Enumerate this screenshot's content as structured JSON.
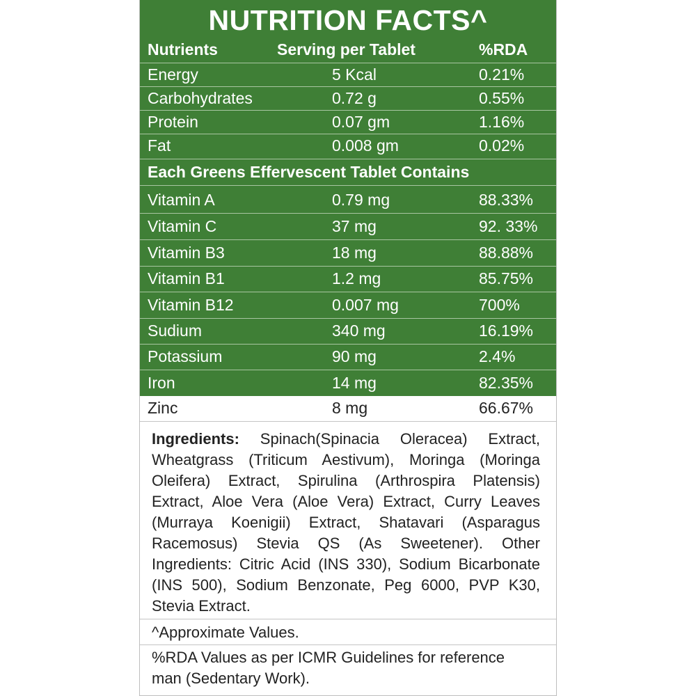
{
  "title": "NUTRITION FACTS^",
  "headers": {
    "col1": "Nutrients",
    "col2": "Serving per Tablet",
    "col3": "%RDA"
  },
  "basic_rows": [
    {
      "name": "Energy",
      "amount": "5 Kcal",
      "rda": "0.21%"
    },
    {
      "name": "Carbohydrates",
      "amount": "0.72 g",
      "rda": "0.55%"
    },
    {
      "name": "Protein",
      "amount": "0.07 gm",
      "rda": "1.16%"
    },
    {
      "name": "Fat",
      "amount": "0.008 gm",
      "rda": "0.02%"
    }
  ],
  "section_heading": "Each Greens Effervescent Tablet Contains",
  "vitamin_rows": [
    {
      "name": "Vitamin A",
      "amount": "0.79 mg",
      "rda": "88.33%"
    },
    {
      "name": "Vitamin C",
      "amount": "37 mg",
      "rda": "92. 33%"
    },
    {
      "name": "Vitamin B3",
      "amount": "18 mg",
      "rda": "88.88%"
    },
    {
      "name": "Vitamin B1",
      "amount": "1.2 mg",
      "rda": "85.75%"
    },
    {
      "name": "Vitamin B12",
      "amount": "0.007 mg",
      "rda": "700%"
    },
    {
      "name": "Sudium",
      "amount": "340 mg",
      "rda": "16.19%"
    },
    {
      "name": "Potassium",
      "amount": "90 mg",
      "rda": "2.4%"
    },
    {
      "name": "Iron",
      "amount": "14 mg",
      "rda": "82.35%"
    },
    {
      "name": "Zinc",
      "amount": "8 mg",
      "rda": "66.67%"
    }
  ],
  "ingredients": {
    "label": "Ingredients:",
    "text": " Spinach(Spinacia Oleracea) Extract, Wheatgrass (Triticum Aestivum), Moringa (Moringa Oleifera) Extract, Spirulina (Arthrospira Platensis) Extract, Aloe Vera (Aloe Vera) Extract, Curry Leaves (Murraya Koenigii) Extract, Shatavari (Asparagus Racemosus) Stevia QS (As Sweetener). Other Ingredients: Citric Acid (INS 330), Sodium Bicarbonate (INS 500), Sodium Benzonate, Peg 6000, PVP K30, Stevia Extract."
  },
  "approx_note": "^Approximate Values.",
  "rda_note": "%RDA Values as per ICMR Guidelines for reference man (Sedentary Work).",
  "colors": {
    "panel_green": "#3f7f36",
    "text_dark": "#222222"
  }
}
